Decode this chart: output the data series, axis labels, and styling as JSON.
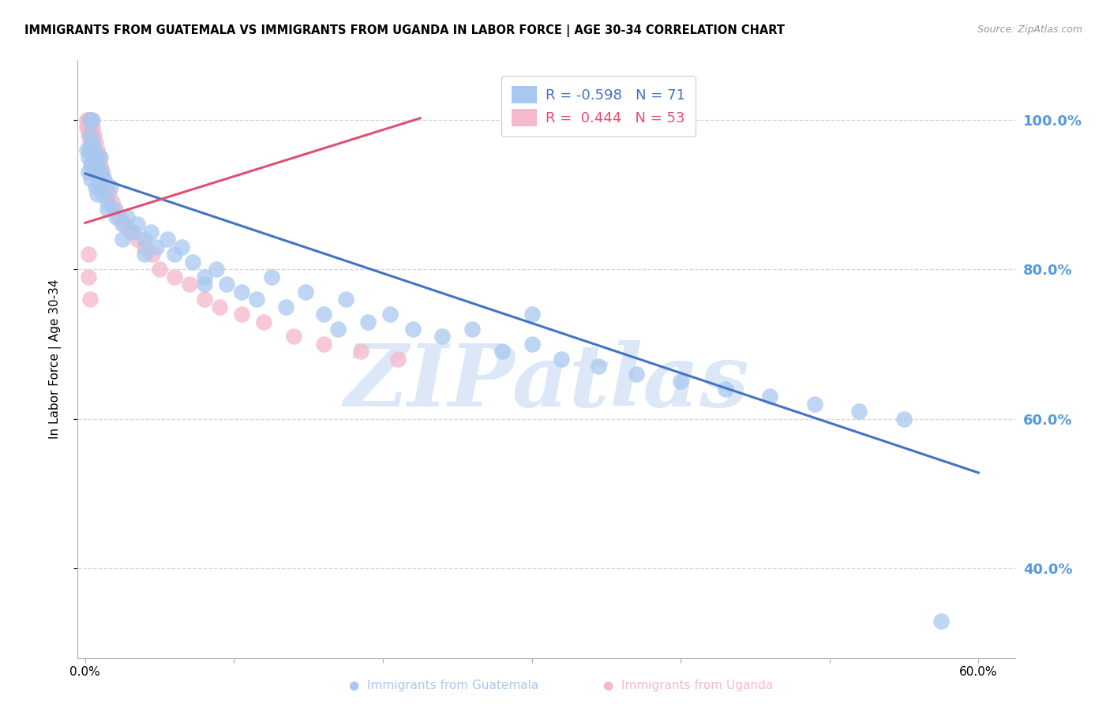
{
  "title": "IMMIGRANTS FROM GUATEMALA VS IMMIGRANTS FROM UGANDA IN LABOR FORCE | AGE 30-34 CORRELATION CHART",
  "source": "Source: ZipAtlas.com",
  "ylabel": "In Labor Force | Age 30-34",
  "blue_label": "Immigrants from Guatemala",
  "pink_label": "Immigrants from Uganda",
  "blue_R": -0.598,
  "blue_N": 71,
  "pink_R": 0.444,
  "pink_N": 53,
  "blue_color": "#a8c8f0",
  "pink_color": "#f5b8cc",
  "blue_line_color": "#4472c4",
  "pink_line_color": "#e05070",
  "watermark": "ZIPatlas",
  "watermark_color": "#dce8f8",
  "background_color": "#ffffff",
  "grid_color": "#d0d0d0",
  "right_label_color": "#5599dd",
  "xlim": [
    -0.005,
    0.625
  ],
  "ylim": [
    0.28,
    1.08
  ],
  "yticks": [
    0.4,
    0.6,
    0.8,
    1.0
  ],
  "ytick_labels": [
    "40.0%",
    "60.0%",
    "80.0%",
    "100.0%"
  ],
  "blue_line_x0": 0.0,
  "blue_line_y0": 0.928,
  "blue_line_x1": 0.6,
  "blue_line_y1": 0.528,
  "pink_line_x0": 0.0,
  "pink_line_y0": 0.862,
  "pink_line_x1": 0.225,
  "pink_line_y1": 1.002,
  "blue_scatter_x": [
    0.001,
    0.002,
    0.002,
    0.003,
    0.003,
    0.003,
    0.004,
    0.004,
    0.005,
    0.005,
    0.005,
    0.006,
    0.006,
    0.007,
    0.007,
    0.008,
    0.008,
    0.009,
    0.01,
    0.01,
    0.011,
    0.012,
    0.013,
    0.015,
    0.017,
    0.019,
    0.021,
    0.025,
    0.028,
    0.032,
    0.035,
    0.04,
    0.044,
    0.048,
    0.055,
    0.06,
    0.065,
    0.072,
    0.08,
    0.088,
    0.095,
    0.105,
    0.115,
    0.125,
    0.135,
    0.148,
    0.16,
    0.175,
    0.19,
    0.205,
    0.22,
    0.24,
    0.26,
    0.28,
    0.3,
    0.32,
    0.345,
    0.37,
    0.4,
    0.43,
    0.46,
    0.49,
    0.52,
    0.55,
    0.3,
    0.17,
    0.08,
    0.04,
    0.025,
    0.015,
    0.575
  ],
  "blue_scatter_y": [
    0.96,
    0.95,
    0.93,
    1.0,
    0.98,
    0.96,
    0.94,
    0.92,
    1.0,
    0.97,
    0.94,
    0.96,
    0.93,
    0.95,
    0.91,
    0.94,
    0.9,
    0.92,
    0.95,
    0.91,
    0.93,
    0.9,
    0.92,
    0.89,
    0.91,
    0.88,
    0.87,
    0.86,
    0.87,
    0.85,
    0.86,
    0.84,
    0.85,
    0.83,
    0.84,
    0.82,
    0.83,
    0.81,
    0.79,
    0.8,
    0.78,
    0.77,
    0.76,
    0.79,
    0.75,
    0.77,
    0.74,
    0.76,
    0.73,
    0.74,
    0.72,
    0.71,
    0.72,
    0.69,
    0.7,
    0.68,
    0.67,
    0.66,
    0.65,
    0.64,
    0.63,
    0.62,
    0.61,
    0.6,
    0.74,
    0.72,
    0.78,
    0.82,
    0.84,
    0.88,
    0.33
  ],
  "pink_scatter_x": [
    0.001,
    0.001,
    0.002,
    0.002,
    0.002,
    0.003,
    0.003,
    0.003,
    0.003,
    0.003,
    0.003,
    0.004,
    0.004,
    0.004,
    0.004,
    0.005,
    0.005,
    0.005,
    0.005,
    0.006,
    0.006,
    0.007,
    0.007,
    0.008,
    0.008,
    0.009,
    0.01,
    0.011,
    0.012,
    0.014,
    0.016,
    0.018,
    0.02,
    0.023,
    0.026,
    0.03,
    0.035,
    0.04,
    0.045,
    0.05,
    0.06,
    0.07,
    0.08,
    0.09,
    0.105,
    0.12,
    0.14,
    0.16,
    0.185,
    0.21,
    0.002,
    0.002,
    0.003
  ],
  "pink_scatter_y": [
    1.0,
    0.99,
    1.0,
    0.99,
    0.98,
    1.0,
    1.0,
    0.99,
    0.98,
    0.97,
    0.96,
    1.0,
    0.99,
    0.98,
    0.96,
    0.99,
    0.98,
    0.97,
    0.95,
    0.98,
    0.96,
    0.97,
    0.95,
    0.96,
    0.94,
    0.95,
    0.94,
    0.93,
    0.92,
    0.91,
    0.9,
    0.89,
    0.88,
    0.87,
    0.86,
    0.85,
    0.84,
    0.83,
    0.82,
    0.8,
    0.79,
    0.78,
    0.76,
    0.75,
    0.74,
    0.73,
    0.71,
    0.7,
    0.69,
    0.68,
    0.82,
    0.79,
    0.76
  ]
}
